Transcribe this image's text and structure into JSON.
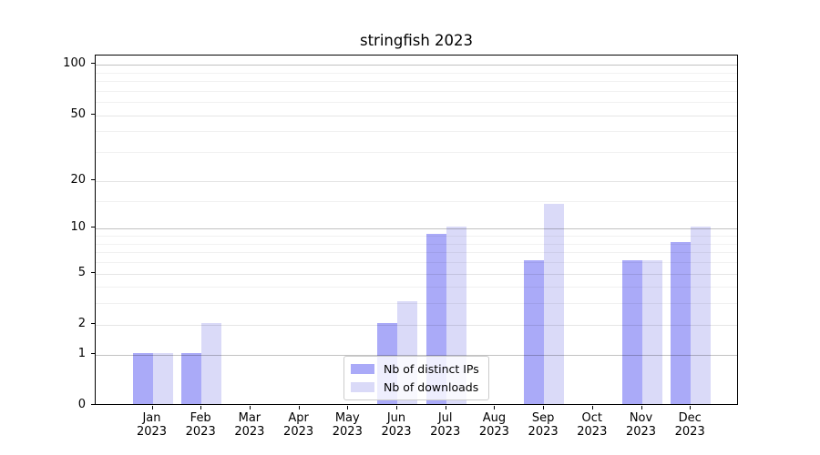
{
  "chart_data": {
    "type": "bar",
    "title": "stringfish 2023",
    "categories": [
      "Jan",
      "Feb",
      "Mar",
      "Apr",
      "May",
      "Jun",
      "Jul",
      "Aug",
      "Sep",
      "Oct",
      "Nov",
      "Dec"
    ],
    "category_year": "2023",
    "series": [
      {
        "name": "Nb of distinct IPs",
        "color": "#aaaaf8",
        "values": [
          1,
          1,
          0,
          0,
          0,
          2,
          9,
          0,
          6,
          0,
          6,
          8
        ]
      },
      {
        "name": "Nb of downloads",
        "color": "#dadaf8",
        "values": [
          1,
          2,
          0,
          0,
          0,
          3,
          10,
          0,
          14,
          0,
          6,
          10
        ]
      }
    ],
    "xlabel": "",
    "ylabel": "",
    "y_axis": {
      "scale": "log10(value+1)",
      "tick_values": [
        0,
        1,
        2,
        5,
        10,
        20,
        50,
        100
      ],
      "emphasized_gridlines": [
        1,
        10,
        100
      ],
      "minor_gridline_values": [
        3,
        4,
        6,
        7,
        8,
        9,
        15,
        30,
        40,
        60,
        70,
        80,
        90
      ],
      "ylim": [
        0,
        115
      ]
    },
    "grid": "horizontal",
    "legend_position": "lower center",
    "colors": {
      "axis": "#000000",
      "major_gridline": "#c2c2c2",
      "labeled_gridline": "#e4e4e4",
      "minor_gridline": "#efefef",
      "legend_border": "#cccccc",
      "background": "#ffffff"
    }
  }
}
